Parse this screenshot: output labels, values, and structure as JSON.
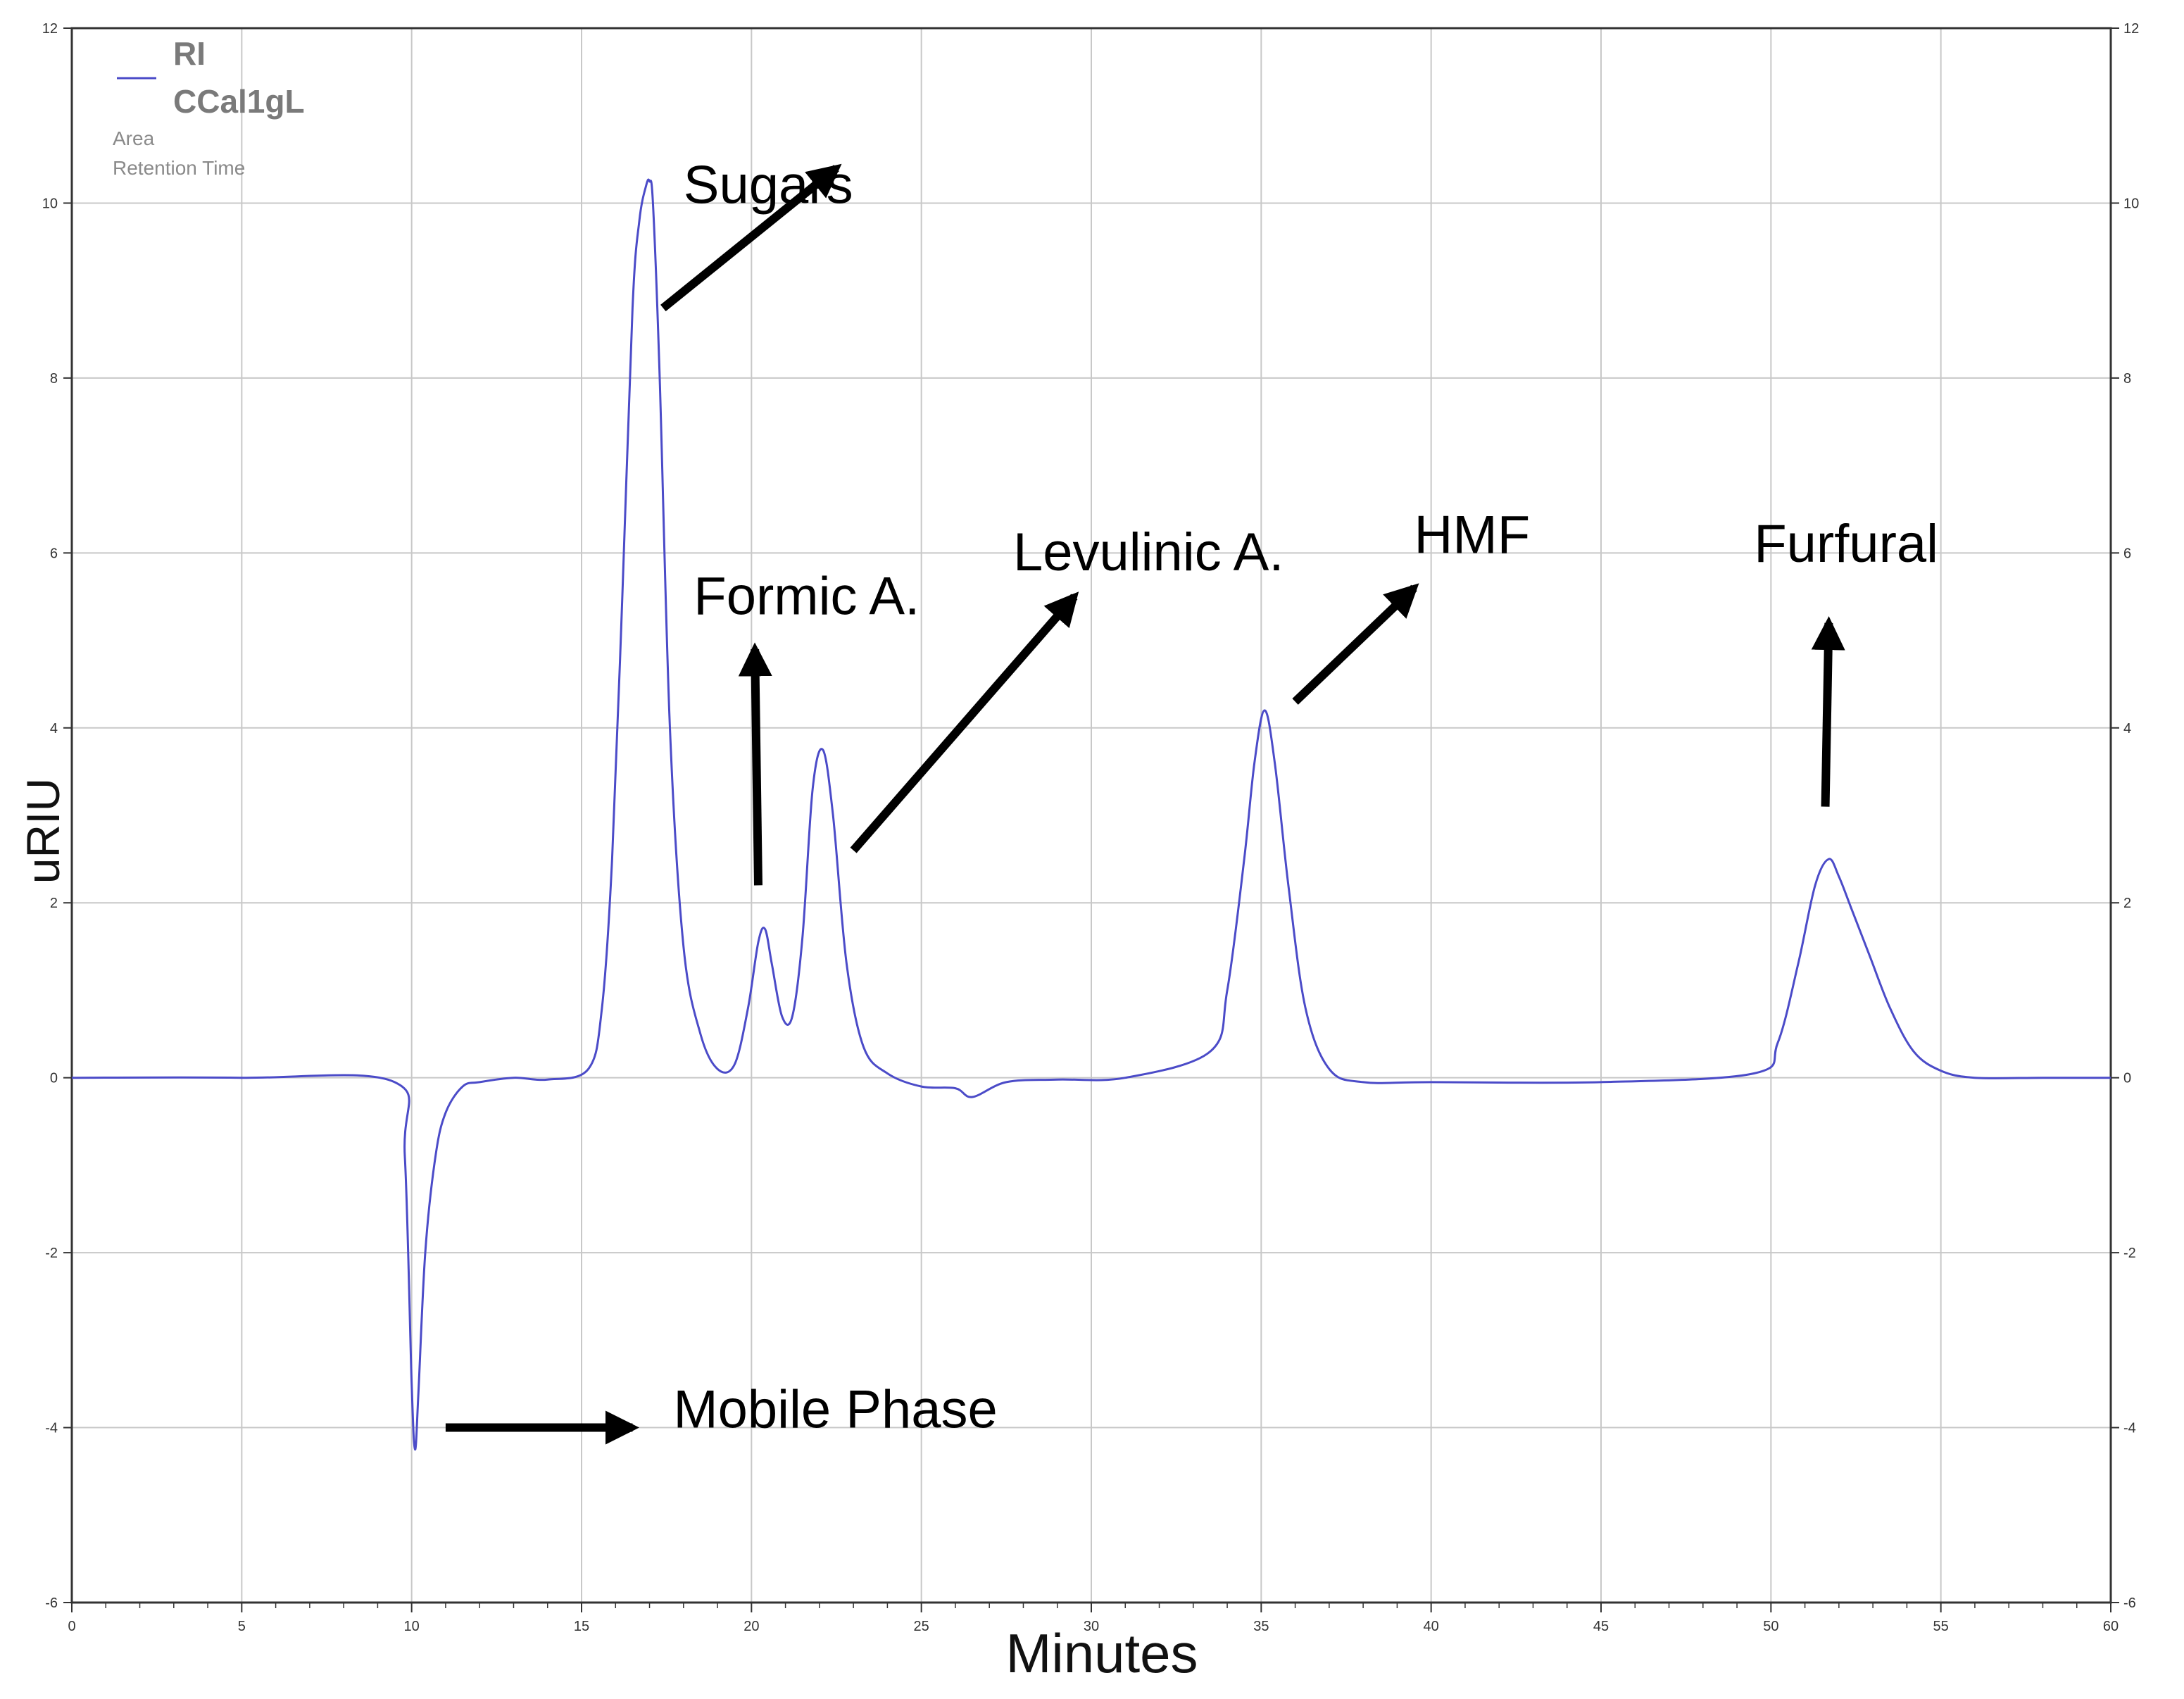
{
  "chart_data": {
    "type": "line",
    "title": "",
    "xlabel": "Minutes",
    "ylabel": "uRIU",
    "xlim": [
      0,
      60
    ],
    "ylim": [
      -6,
      12
    ],
    "x_ticks": [
      0,
      5,
      10,
      15,
      20,
      25,
      30,
      35,
      40,
      45,
      50,
      55,
      60
    ],
    "y_ticks": [
      -6,
      -4,
      -2,
      0,
      2,
      4,
      6,
      8,
      10,
      12
    ],
    "grid": true,
    "legend": {
      "position": "top-left",
      "entries": [
        "RI",
        "CCal1gL"
      ],
      "extra": [
        "Area",
        "Retention Time"
      ]
    },
    "series": [
      {
        "name": "RI",
        "color": "#4b4bc8",
        "x": [
          0,
          5,
          9.5,
          9.8,
          10.0,
          10.1,
          10.2,
          10.4,
          10.7,
          11.0,
          11.5,
          12,
          13,
          14,
          15.2,
          15.6,
          15.9,
          16.2,
          16.5,
          16.7,
          16.9,
          17.0,
          17.1,
          17.3,
          17.6,
          18.0,
          18.5,
          19.0,
          19.5,
          19.9,
          20.2,
          20.4,
          20.6,
          20.9,
          21.2,
          21.5,
          21.8,
          22.1,
          22.4,
          22.8,
          23.3,
          24.0,
          25.0,
          26.0,
          26.5,
          27.5,
          29,
          31,
          33.5,
          34.0,
          34.5,
          34.8,
          35.1,
          35.4,
          35.8,
          36.3,
          37.0,
          38.0,
          40,
          45,
          49.5,
          50.2,
          50.8,
          51.3,
          51.7,
          52.0,
          52.4,
          52.9,
          53.5,
          54.2,
          55.0,
          56,
          58,
          60
        ],
        "y": [
          0,
          0,
          -0.05,
          -0.9,
          -3.5,
          -4.25,
          -3.6,
          -2.0,
          -0.9,
          -0.4,
          -0.1,
          -0.05,
          0,
          -0.02,
          0.1,
          0.8,
          2.5,
          5.5,
          8.8,
          9.8,
          10.2,
          10.25,
          10.0,
          8.0,
          4.0,
          1.5,
          0.5,
          0.1,
          0.15,
          0.8,
          1.55,
          1.7,
          1.3,
          0.7,
          0.7,
          1.6,
          3.3,
          3.75,
          3.0,
          1.3,
          0.35,
          0.05,
          -0.1,
          -0.12,
          -0.22,
          -0.05,
          -0.02,
          0,
          0.3,
          1.0,
          2.5,
          3.6,
          4.2,
          3.6,
          2.2,
          0.8,
          0.1,
          -0.05,
          -0.05,
          -0.05,
          0.05,
          0.4,
          1.3,
          2.2,
          2.5,
          2.3,
          1.9,
          1.4,
          0.8,
          0.3,
          0.08,
          0,
          0,
          0
        ]
      }
    ],
    "annotations": [
      {
        "text": "Sugars",
        "x": 18.0,
        "y": 10.0
      },
      {
        "text": "Formic A.",
        "x": 18.3,
        "y": 5.3
      },
      {
        "text": "Levulinic A.",
        "x": 27.7,
        "y": 5.8
      },
      {
        "text": "HMF",
        "x": 39.5,
        "y": 6.0
      },
      {
        "text": "Furfural",
        "x": 49.5,
        "y": 5.9
      },
      {
        "text": "Mobile Phase",
        "x": 17.7,
        "y": -4.0
      }
    ],
    "arrows": [
      {
        "from": [
          17.4,
          8.8
        ],
        "to": [
          22.5,
          10.4
        ]
      },
      {
        "from": [
          20.2,
          2.2
        ],
        "to": [
          20.1,
          4.9
        ]
      },
      {
        "from": [
          23.0,
          2.6
        ],
        "to": [
          29.5,
          5.5
        ]
      },
      {
        "from": [
          36.0,
          4.3
        ],
        "to": [
          39.5,
          5.6
        ]
      },
      {
        "from": [
          51.6,
          3.1
        ],
        "to": [
          51.7,
          5.2
        ]
      },
      {
        "from": [
          11.0,
          -4.0
        ],
        "to": [
          16.5,
          -4.0
        ]
      }
    ]
  }
}
